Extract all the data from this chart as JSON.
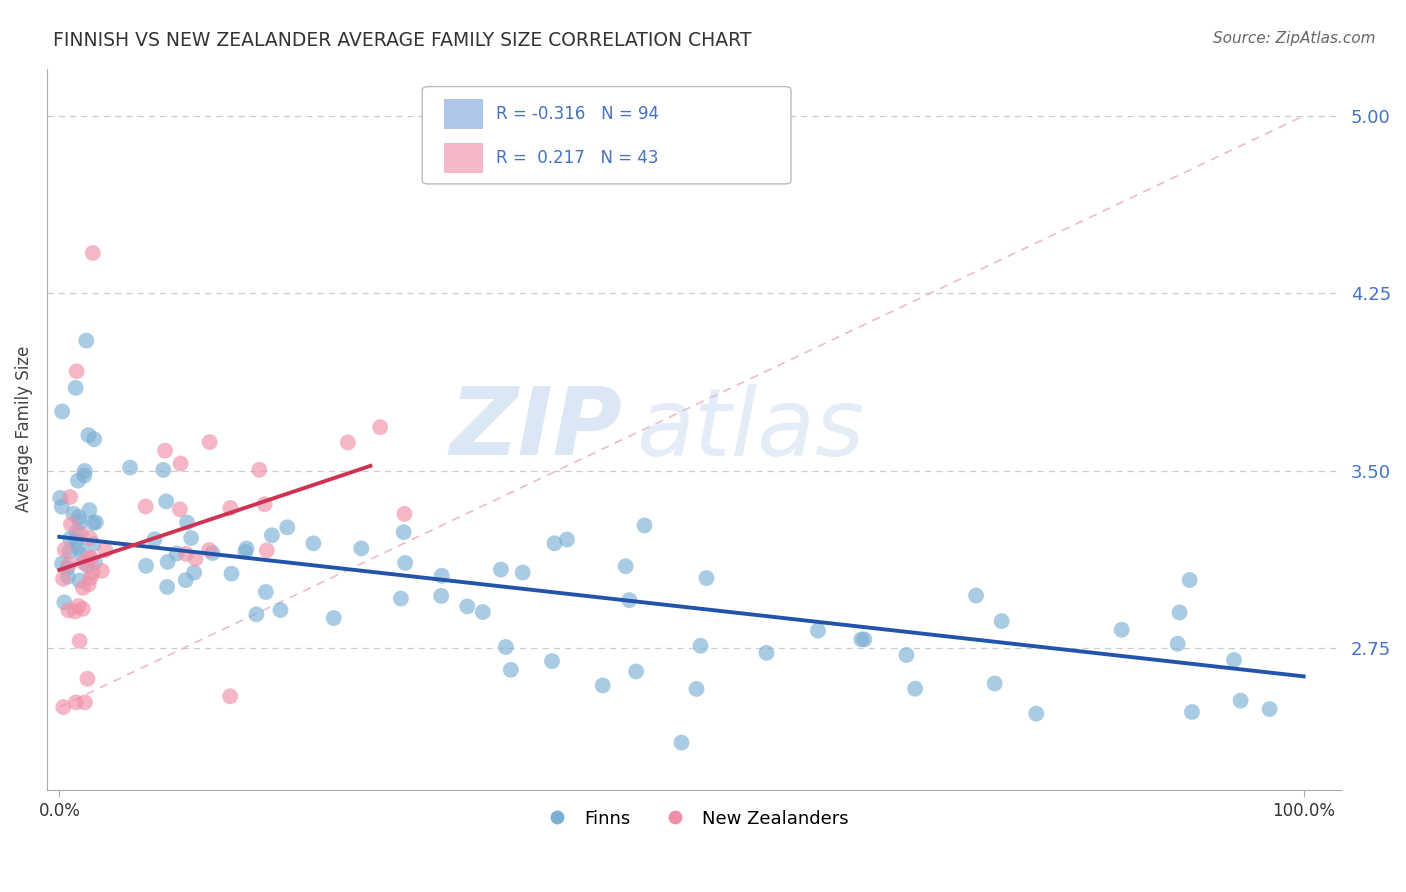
{
  "title": "FINNISH VS NEW ZEALANDER AVERAGE FAMILY SIZE CORRELATION CHART",
  "source": "Source: ZipAtlas.com",
  "ylabel": "Average Family Size",
  "xlim": [
    -1,
    103
  ],
  "ylim": [
    2.15,
    5.2
  ],
  "yticks": [
    2.75,
    3.5,
    4.25,
    5.0
  ],
  "ytick_labels": [
    "2.75",
    "3.50",
    "4.25",
    "5.00"
  ],
  "ytick_color": "#4472c4",
  "grid_color": "#cccccc",
  "legend_finn_color": "#aec6e8",
  "legend_nz_color": "#f4b8c8",
  "finn_scatter_color": "#7bafd4",
  "nz_scatter_color": "#f090a8",
  "finn_line_color": "#2255aa",
  "nz_line_color": "#cc3355",
  "diagonal_color": "#e8b0c0",
  "R_finn": "-0.316",
  "N_finn": "94",
  "R_nz": "0.217",
  "N_nz": "43",
  "watermark_zip": "ZIP",
  "watermark_atlas": "atlas",
  "finn_line_x0": 0,
  "finn_line_y0": 3.22,
  "finn_line_x1": 100,
  "finn_line_y1": 2.63,
  "nz_line_x0": 0,
  "nz_line_y0": 3.08,
  "nz_line_x1": 25,
  "nz_line_y1": 3.52,
  "diag_x0": 0,
  "diag_y0": 2.5,
  "diag_x1": 100,
  "diag_y1": 5.0
}
